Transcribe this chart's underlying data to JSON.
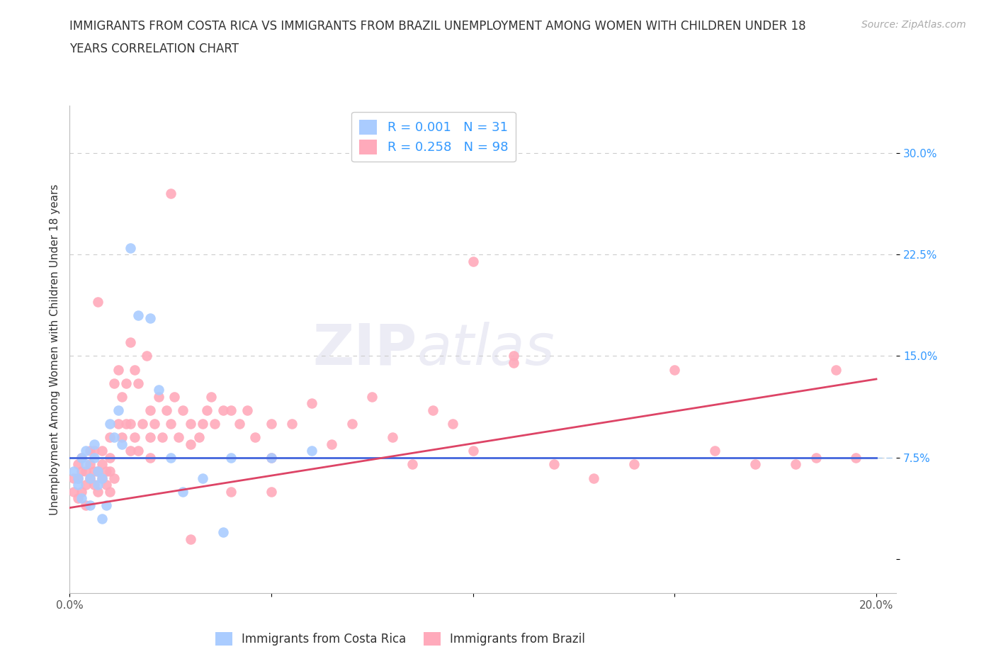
{
  "title_line1": "IMMIGRANTS FROM COSTA RICA VS IMMIGRANTS FROM BRAZIL UNEMPLOYMENT AMONG WOMEN WITH CHILDREN UNDER 18",
  "title_line2": "YEARS CORRELATION CHART",
  "source": "Source: ZipAtlas.com",
  "ylabel": "Unemployment Among Women with Children Under 18 years",
  "xlim": [
    0.0,
    0.205
  ],
  "ylim": [
    -0.025,
    0.335
  ],
  "yticks": [
    0.0,
    0.075,
    0.15,
    0.225,
    0.3
  ],
  "ytick_labels": [
    "",
    "7.5%",
    "15.0%",
    "22.5%",
    "30.0%"
  ],
  "xticks": [
    0.0,
    0.05,
    0.1,
    0.15,
    0.2
  ],
  "xtick_labels": [
    "0.0%",
    "",
    "",
    "",
    "20.0%"
  ],
  "grid_color": "#cccccc",
  "watermark_zip": "ZIP",
  "watermark_atlas": "atlas",
  "costa_rica_color": "#aaccff",
  "brazil_color": "#ffaabb",
  "costa_rica_R": "0.001",
  "costa_rica_N": "31",
  "brazil_R": "0.258",
  "brazil_N": "98",
  "legend_label_1": "Immigrants from Costa Rica",
  "legend_label_2": "Immigrants from Brazil",
  "cr_line": [
    0.0,
    0.075,
    0.2,
    0.075
  ],
  "br_line": [
    0.0,
    0.038,
    0.2,
    0.133
  ],
  "costa_rica_x": [
    0.001,
    0.002,
    0.002,
    0.003,
    0.003,
    0.004,
    0.004,
    0.005,
    0.005,
    0.006,
    0.006,
    0.007,
    0.007,
    0.008,
    0.008,
    0.009,
    0.01,
    0.011,
    0.012,
    0.013,
    0.015,
    0.017,
    0.02,
    0.022,
    0.025,
    0.028,
    0.033,
    0.038,
    0.04,
    0.05,
    0.06
  ],
  "costa_rica_y": [
    0.065,
    0.055,
    0.06,
    0.045,
    0.075,
    0.07,
    0.08,
    0.06,
    0.04,
    0.075,
    0.085,
    0.055,
    0.065,
    0.06,
    0.03,
    0.04,
    0.1,
    0.09,
    0.11,
    0.085,
    0.23,
    0.18,
    0.178,
    0.125,
    0.075,
    0.05,
    0.06,
    0.02,
    0.075,
    0.075,
    0.08
  ],
  "brazil_x": [
    0.001,
    0.001,
    0.002,
    0.002,
    0.002,
    0.003,
    0.003,
    0.003,
    0.004,
    0.004,
    0.004,
    0.005,
    0.005,
    0.005,
    0.006,
    0.006,
    0.006,
    0.007,
    0.007,
    0.007,
    0.008,
    0.008,
    0.008,
    0.009,
    0.009,
    0.01,
    0.01,
    0.01,
    0.011,
    0.011,
    0.012,
    0.012,
    0.013,
    0.013,
    0.014,
    0.014,
    0.015,
    0.015,
    0.016,
    0.016,
    0.017,
    0.017,
    0.018,
    0.019,
    0.02,
    0.02,
    0.021,
    0.022,
    0.023,
    0.024,
    0.025,
    0.026,
    0.027,
    0.028,
    0.03,
    0.03,
    0.032,
    0.033,
    0.034,
    0.035,
    0.036,
    0.038,
    0.04,
    0.042,
    0.044,
    0.046,
    0.05,
    0.05,
    0.055,
    0.06,
    0.065,
    0.07,
    0.075,
    0.08,
    0.085,
    0.09,
    0.095,
    0.1,
    0.11,
    0.12,
    0.13,
    0.14,
    0.15,
    0.16,
    0.17,
    0.18,
    0.185,
    0.19,
    0.195,
    0.01,
    0.015,
    0.02,
    0.025,
    0.03,
    0.04,
    0.05,
    0.1,
    0.11
  ],
  "brazil_y": [
    0.06,
    0.05,
    0.045,
    0.06,
    0.07,
    0.05,
    0.065,
    0.075,
    0.055,
    0.065,
    0.04,
    0.06,
    0.07,
    0.08,
    0.055,
    0.065,
    0.08,
    0.05,
    0.065,
    0.19,
    0.06,
    0.07,
    0.08,
    0.055,
    0.065,
    0.05,
    0.065,
    0.09,
    0.06,
    0.13,
    0.1,
    0.14,
    0.09,
    0.12,
    0.1,
    0.13,
    0.08,
    0.1,
    0.09,
    0.14,
    0.08,
    0.13,
    0.1,
    0.15,
    0.09,
    0.11,
    0.1,
    0.12,
    0.09,
    0.11,
    0.1,
    0.12,
    0.09,
    0.11,
    0.085,
    0.1,
    0.09,
    0.1,
    0.11,
    0.12,
    0.1,
    0.11,
    0.11,
    0.1,
    0.11,
    0.09,
    0.1,
    0.075,
    0.1,
    0.115,
    0.085,
    0.1,
    0.12,
    0.09,
    0.07,
    0.11,
    0.1,
    0.08,
    0.15,
    0.07,
    0.06,
    0.07,
    0.14,
    0.08,
    0.07,
    0.07,
    0.075,
    0.14,
    0.075,
    0.075,
    0.16,
    0.075,
    0.27,
    0.015,
    0.05,
    0.05,
    0.22,
    0.145
  ]
}
